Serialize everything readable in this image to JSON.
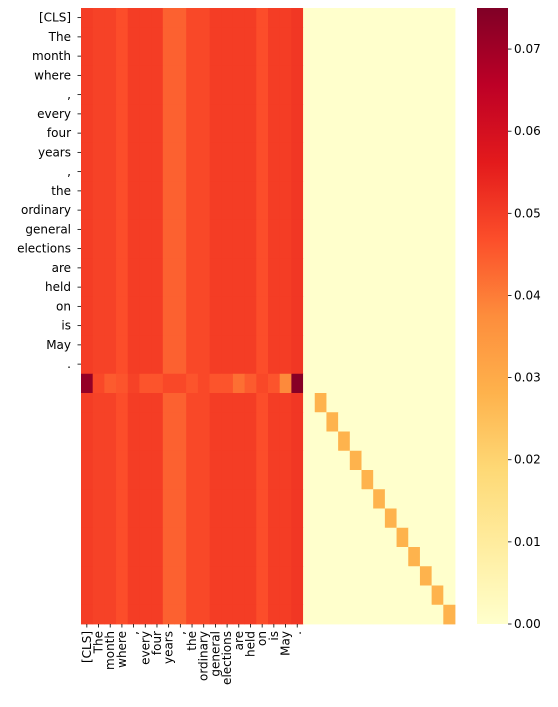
{
  "chart_data": {
    "type": "heatmap",
    "title": "",
    "xlabel": "",
    "ylabel": "",
    "x_tick_labels": [
      "[CLS]",
      "The",
      "month",
      "where",
      ",",
      "every",
      "four",
      "years",
      ",",
      "the",
      "ordinary",
      "general",
      "elections",
      "are",
      "held",
      "on",
      "is",
      "May",
      "."
    ],
    "y_tick_labels": [
      "[CLS]",
      "The",
      "month",
      "where",
      ",",
      "every",
      "four",
      "years",
      ",",
      "the",
      "ordinary",
      "general",
      "elections",
      "are",
      "held",
      "on",
      "is",
      "May",
      "."
    ],
    "n_rows": 32,
    "n_cols": 32,
    "n_tokens": 19,
    "column_values": [
      0.05,
      0.049,
      0.049,
      0.047,
      0.05,
      0.05,
      0.05,
      0.044,
      0.044,
      0.048,
      0.048,
      0.05,
      0.05,
      0.05,
      0.05,
      0.047,
      0.05,
      0.05,
      0.051
    ],
    "special_row": {
      "index": 19,
      "values": [
        0.072,
        0.048,
        0.045,
        0.046,
        0.049,
        0.046,
        0.046,
        0.048,
        0.048,
        0.046,
        0.048,
        0.046,
        0.046,
        0.042,
        0.045,
        0.048,
        0.046,
        0.038,
        0.074
      ]
    },
    "diagonal_start_row": 20,
    "diagonal_start_col": 20,
    "diagonal_value": 0.028,
    "background_value": 0.0,
    "colormap": "YlOrRd",
    "color_stops": [
      "#ffffcc",
      "#ffeda0",
      "#fed976",
      "#feb24c",
      "#fd8d3c",
      "#fc4e2a",
      "#e31a1c",
      "#bd0026",
      "#800026"
    ],
    "vmin": 0.0,
    "vmax": 0.075,
    "colorbar_ticks": [
      0.0,
      0.01,
      0.02,
      0.03,
      0.04,
      0.05,
      0.06,
      0.07
    ],
    "colorbar_tick_labels": [
      "0.00",
      "0.01",
      "0.02",
      "0.03",
      "0.04",
      "0.05",
      "0.06",
      "0.07"
    ]
  }
}
